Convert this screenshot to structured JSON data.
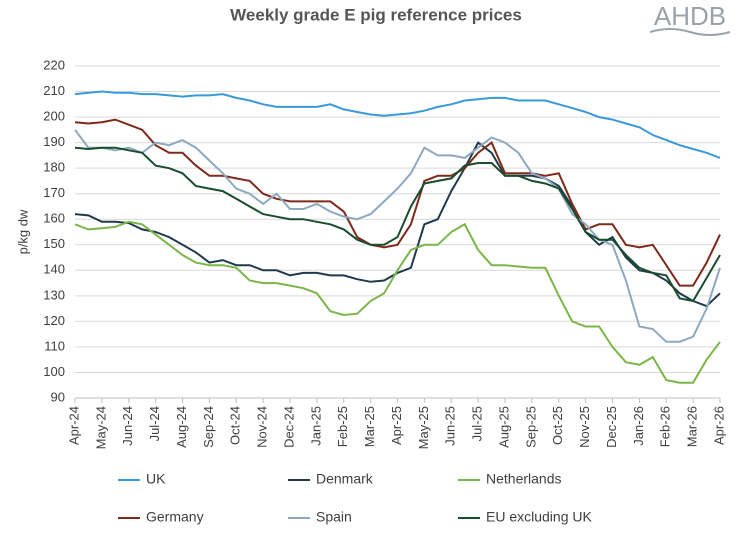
{
  "chart_data": {
    "type": "line",
    "title": "Weekly grade E pig reference prices",
    "logo": "AHDB",
    "y_label": "p/kg dw",
    "categories": [
      "Apr-24",
      null,
      "May-24",
      null,
      "Jun-24",
      null,
      "Jul-24",
      null,
      "Aug-24",
      null,
      "Sep-24",
      null,
      "Oct-24",
      null,
      "Nov-24",
      null,
      "Dec-24",
      null,
      "Jan-25",
      null,
      "Feb-25",
      null,
      "Mar-25",
      null,
      "Apr-25",
      null,
      "May-25",
      null,
      "Jun-25",
      null,
      "Jul-25",
      null,
      "Aug-25",
      null,
      "Sep-25",
      null,
      "Oct-25",
      null,
      "Nov-25",
      null,
      "Dec-25",
      null,
      "Jan-26",
      null,
      "Feb-26",
      null,
      "Mar-26",
      null,
      "Apr-26"
    ],
    "series": [
      {
        "name": "UK",
        "color": "#3a9ad9",
        "values": [
          209,
          209.5,
          210,
          209.5,
          209.5,
          209,
          209,
          208.5,
          208,
          208.5,
          208.5,
          209,
          207.5,
          206.5,
          205,
          204,
          204,
          204,
          204,
          205,
          203,
          202,
          201,
          200.5,
          201,
          201.5,
          202.5,
          204,
          205,
          206.5,
          207,
          207.5,
          207.5,
          206.5,
          206.5,
          206.5,
          205,
          203.5,
          202,
          200,
          199,
          197.5,
          196,
          193,
          191,
          189,
          187.5,
          186,
          184
        ]
      },
      {
        "name": "Denmark",
        "color": "#1f3a4d",
        "values": [
          162,
          161.5,
          159,
          159,
          158.5,
          156,
          155,
          153,
          150,
          147,
          143,
          144,
          142,
          142,
          140,
          140,
          138,
          139,
          139,
          138,
          138,
          136.5,
          135.5,
          136,
          139,
          141,
          158,
          160,
          171,
          180,
          190,
          186,
          177,
          177,
          177,
          176,
          173,
          165,
          155,
          150,
          153,
          145,
          140,
          139,
          136,
          131,
          128,
          126,
          131
        ]
      },
      {
        "name": "Netherlands",
        "color": "#7ab648",
        "values": [
          158,
          156,
          156.5,
          157,
          159,
          158,
          154,
          150,
          146,
          143,
          142,
          142,
          141,
          136,
          135,
          135,
          134,
          133,
          131,
          124,
          122.5,
          123,
          128,
          131,
          140,
          148,
          150,
          150,
          155,
          158,
          148,
          142,
          142,
          141.5,
          141,
          141,
          130,
          120,
          118,
          118,
          110,
          104,
          103,
          106,
          97,
          96,
          96,
          105,
          112
        ]
      },
      {
        "name": "Germany",
        "color": "#7f2a1b",
        "values": [
          198,
          197.5,
          198,
          199,
          197,
          195,
          189,
          186,
          186,
          181,
          177,
          177,
          176,
          175,
          170,
          168,
          167,
          167,
          167,
          167,
          163,
          153,
          150,
          149,
          150,
          158,
          175,
          177,
          177,
          180,
          186,
          190,
          178,
          178,
          178,
          177,
          178,
          166,
          156,
          158,
          158,
          150,
          149,
          150,
          142,
          134,
          134,
          143,
          154
        ]
      },
      {
        "name": "Spain",
        "color": "#8ea9bf",
        "values": [
          195,
          188,
          188,
          187,
          188,
          186,
          190,
          189,
          191,
          188,
          183,
          178,
          172,
          170,
          166,
          170,
          164,
          164,
          166,
          163,
          161,
          160,
          162,
          167,
          172,
          178,
          188,
          185,
          185,
          184,
          188,
          192,
          190,
          186,
          178,
          176,
          172,
          162,
          158,
          152,
          150,
          136,
          118,
          117,
          112,
          112,
          114,
          125,
          141
        ]
      },
      {
        "name": "EU excluding UK",
        "color": "#1a4d2e",
        "values": [
          188,
          187.5,
          188,
          188,
          187,
          186,
          181,
          180,
          178,
          173,
          172,
          171,
          168,
          165,
          162,
          161,
          160,
          160,
          159,
          158,
          156,
          152,
          150,
          150,
          153,
          165,
          174,
          175,
          176,
          181,
          182,
          182,
          177,
          177,
          175,
          174,
          172,
          164,
          155,
          152,
          152,
          146,
          141,
          139,
          138,
          129,
          128,
          137,
          146
        ]
      }
    ],
    "ylim": [
      90,
      220
    ],
    "yticks": [
      90,
      100,
      110,
      120,
      130,
      140,
      150,
      160,
      170,
      180,
      190,
      200,
      210,
      220
    ],
    "grid": true
  }
}
